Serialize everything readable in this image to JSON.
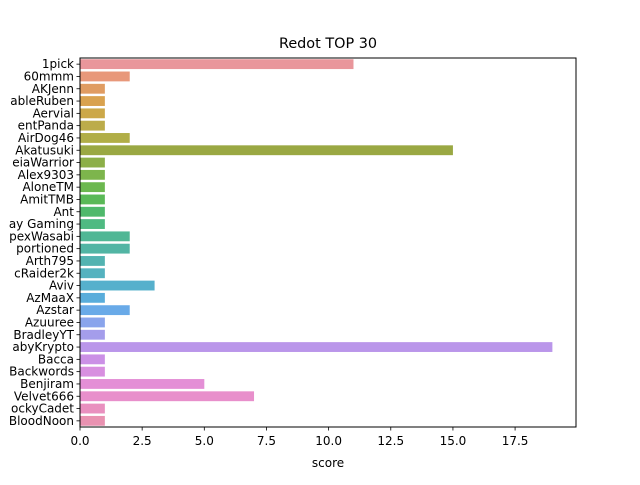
{
  "chart_data": {
    "type": "bar",
    "orientation": "horizontal",
    "title": "Redot TOP 30",
    "xlabel": "score",
    "ylabel": "",
    "xlim": [
      0,
      19.95
    ],
    "xticks": [
      "0.0",
      "2.5",
      "5.0",
      "7.5",
      "10.0",
      "12.5",
      "15.0",
      "17.5"
    ],
    "xtick_values": [
      0,
      2.5,
      5,
      7.5,
      10,
      12.5,
      15,
      17.5
    ],
    "grid": false,
    "legend": "none",
    "categories": [
      "1pick",
      "60mmm",
      "AKJenn",
      "ableRuben",
      "Aervial",
      "entPanda",
      "AirDog46",
      "Akatusuki",
      "eiaWarrior",
      "Alex9303",
      "AloneTM",
      "AmitTMB",
      "Ant",
      "ay Gaming",
      "pexWasabi",
      "portioned",
      "Arth795",
      "cRaider2k",
      "Aviv",
      "AzMaaX",
      "Azstar",
      "Azuuree",
      "BradleyYT",
      "abyKrypto",
      "Bacca",
      "Backwords",
      "Benjiram",
      "Velvet666",
      "ockyCadet",
      "BloodNoon"
    ],
    "values": [
      11,
      2,
      1,
      1,
      1,
      1,
      2,
      15,
      1,
      1,
      1,
      1,
      1,
      1,
      2,
      2,
      1,
      1,
      3,
      1,
      2,
      1,
      1,
      19,
      1,
      1,
      5,
      7,
      1,
      1
    ],
    "colors": [
      "#e9969b",
      "#e8987a",
      "#e09c62",
      "#d9a24f",
      "#cca849",
      "#bcac4a",
      "#b1ae47",
      "#9aa843",
      "#8caf48",
      "#7db54c",
      "#6cb84f",
      "#5ab957",
      "#4fb96b",
      "#4fba82",
      "#50b795",
      "#52b5a4",
      "#53b3b1",
      "#54b2bf",
      "#56b0cc",
      "#59addb",
      "#69aae8",
      "#89a4ec",
      "#a49deb",
      "#ba96ea",
      "#cb90e6",
      "#d88fe0",
      "#e48fd6",
      "#e88fcb",
      "#e990bf",
      "#e992b1"
    ]
  }
}
